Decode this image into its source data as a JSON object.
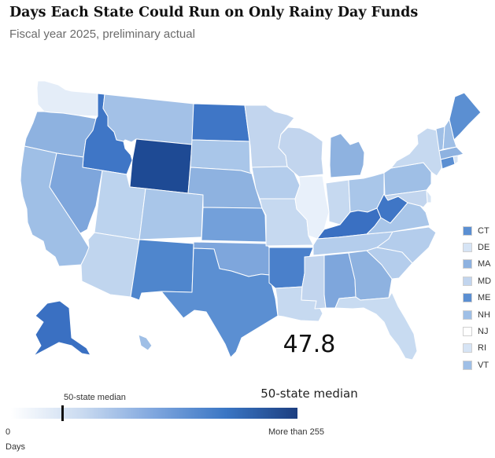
{
  "title": "Days Each State Could Run on Only Rainy Day Funds",
  "subtitle": "Fiscal year 2025, preliminary actual",
  "median": {
    "value": "47.8",
    "label": "50-state median"
  },
  "scale": {
    "min_label": "0",
    "max_label": "More than 255",
    "unit_label": "Days",
    "marker_label": "50-state median",
    "marker_fraction": 0.18,
    "colors": [
      "#ffffff",
      "#c9daf0",
      "#7fa6de",
      "#3a76c4",
      "#1c3e80"
    ]
  },
  "small_states": [
    {
      "abbr": "CT",
      "color": "#5b8fd2"
    },
    {
      "abbr": "DE",
      "color": "#d6e4f5"
    },
    {
      "abbr": "MA",
      "color": "#8eb2e0"
    },
    {
      "abbr": "MD",
      "color": "#c2d5ee"
    },
    {
      "abbr": "ME",
      "color": "#5b8fd2"
    },
    {
      "abbr": "NH",
      "color": "#9fbfe6"
    },
    {
      "abbr": "NJ",
      "color": "#ffffff"
    },
    {
      "abbr": "RI",
      "color": "#d6e4f5"
    },
    {
      "abbr": "VT",
      "color": "#9fbfe6"
    }
  ],
  "states": [
    {
      "abbr": "WA",
      "color": "#e4edf8"
    },
    {
      "abbr": "OR",
      "color": "#8eb2e0"
    },
    {
      "abbr": "CA",
      "color": "#9fbfe6"
    },
    {
      "abbr": "ID",
      "color": "#3f76c6"
    },
    {
      "abbr": "NV",
      "color": "#7ea6dc"
    },
    {
      "abbr": "MT",
      "color": "#a3c1e7"
    },
    {
      "abbr": "WY",
      "color": "#1e4a94"
    },
    {
      "abbr": "UT",
      "color": "#bcd3ee"
    },
    {
      "abbr": "AZ",
      "color": "#c0d5ee"
    },
    {
      "abbr": "CO",
      "color": "#a9c6e9"
    },
    {
      "abbr": "NM",
      "color": "#4f86cd"
    },
    {
      "abbr": "ND",
      "color": "#3f76c6"
    },
    {
      "abbr": "SD",
      "color": "#a9c6e9"
    },
    {
      "abbr": "NE",
      "color": "#8eb2e0"
    },
    {
      "abbr": "KS",
      "color": "#73a0da"
    },
    {
      "abbr": "OK",
      "color": "#7ea6dc"
    },
    {
      "abbr": "TX",
      "color": "#5b8fd2"
    },
    {
      "abbr": "MN",
      "color": "#c2d5ee"
    },
    {
      "abbr": "IA",
      "color": "#b4cdec"
    },
    {
      "abbr": "MO",
      "color": "#c6d9f0"
    },
    {
      "abbr": "AR",
      "color": "#4a80cb"
    },
    {
      "abbr": "LA",
      "color": "#c6d9f0"
    },
    {
      "abbr": "WI",
      "color": "#c2d5ee"
    },
    {
      "abbr": "IL",
      "color": "#e8f0fa"
    },
    {
      "abbr": "MI",
      "color": "#8eb2e0"
    },
    {
      "abbr": "IN",
      "color": "#c6d9f0"
    },
    {
      "abbr": "OH",
      "color": "#a9c6e9"
    },
    {
      "abbr": "KY",
      "color": "#3a70c2"
    },
    {
      "abbr": "TN",
      "color": "#b4cdec"
    },
    {
      "abbr": "MS",
      "color": "#c2d5ee"
    },
    {
      "abbr": "AL",
      "color": "#7ea6dc"
    },
    {
      "abbr": "GA",
      "color": "#8eb2e0"
    },
    {
      "abbr": "FL",
      "color": "#c8dbf1"
    },
    {
      "abbr": "SC",
      "color": "#b4cdec"
    },
    {
      "abbr": "NC",
      "color": "#b4cdec"
    },
    {
      "abbr": "VA",
      "color": "#a9c6e9"
    },
    {
      "abbr": "WV",
      "color": "#3f76c6"
    },
    {
      "abbr": "PA",
      "color": "#9fbfe6"
    },
    {
      "abbr": "NY",
      "color": "#c6d9f0"
    },
    {
      "abbr": "AK",
      "color": "#3a70c2"
    },
    {
      "abbr": "HI",
      "color": "#9fbfe6"
    }
  ]
}
